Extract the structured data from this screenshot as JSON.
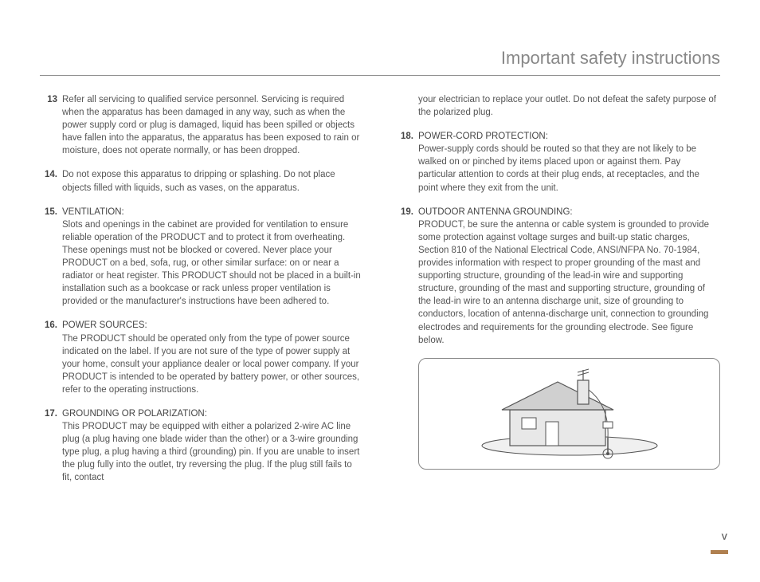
{
  "header": {
    "title": "Important safety instructions"
  },
  "left": [
    {
      "num": "13",
      "title": "",
      "text": "Refer all servicing to qualified service personnel. Servicing is required when the apparatus has been damaged in any way, such as when the power supply cord or plug is damaged, liquid has been spilled or objects have fallen into the apparatus, the apparatus has been exposed to rain or moisture, does not operate normally, or has been dropped."
    },
    {
      "num": "14.",
      "title": "",
      "text": "Do not expose this apparatus to dripping or splashing. Do not place objects filled with liquids, such as vases, on the apparatus."
    },
    {
      "num": "15.",
      "title": "VENTILATION:",
      "text": "Slots and openings in the cabinet are provided for ventilation to ensure reliable operation of the PRODUCT and to protect it from overheating. These openings must not be blocked or covered. Never place your PRODUCT on a bed, sofa, rug, or other similar surface: on or near a radiator or heat register. This PRODUCT should not be placed in a built-in installation such as a bookcase or rack unless proper ventilation is provided or the manufacturer's instructions have been adhered to."
    },
    {
      "num": "16.",
      "title": "POWER SOURCES:",
      "text": "The PRODUCT should be operated only from the type of power source indicated on the label. If you are not sure of the type of power supply at your home, consult your appliance dealer or local power company. If your PRODUCT is intended to be operated by battery power, or other sources, refer to the operating instructions."
    },
    {
      "num": "17.",
      "title": "GROUNDING OR POLARIZATION:",
      "text": "This PRODUCT may be equipped with either a polarized 2-wire AC line plug (a plug having one blade wider than the other) or a 3-wire grounding type plug, a plug having a third (grounding) pin. If you are unable to insert the plug fully into the outlet, try reversing the plug. If the plug still fails to fit, contact"
    }
  ],
  "right": [
    {
      "num": "",
      "title": "",
      "text": "your electrician to replace your outlet. Do not defeat the safety purpose of the polarized plug."
    },
    {
      "num": "18.",
      "title": "POWER-CORD PROTECTION:",
      "text": "Power-supply cords should be routed so that they are not likely to be walked on or pinched by items placed upon or against them. Pay particular attention to cords at their plug ends, at receptacles, and the point where they exit from the unit."
    },
    {
      "num": "19.",
      "title": "OUTDOOR ANTENNA GROUNDING:",
      "text": "PRODUCT, be sure the antenna or cable system is grounded to provide some protection against voltage surges and built-up static charges, Section 810 of the National Electrical Code, ANSI/NFPA No. 70-1984, provides information with respect to proper grounding of the mast and supporting structure, grounding of the lead-in wire and supporting structure, grounding of the mast and supporting structure, grounding of the lead-in wire to an antenna discharge unit, size of grounding to conductors, location of antenna-discharge unit, connection to grounding electrodes and requirements for the grounding electrode. See figure below."
    }
  ],
  "page": "V",
  "figure": {
    "stroke": "#555555",
    "fill_wall": "#e8e8e8",
    "fill_roof": "#d0d0d0",
    "fill_ground": "#f0f0f0"
  }
}
